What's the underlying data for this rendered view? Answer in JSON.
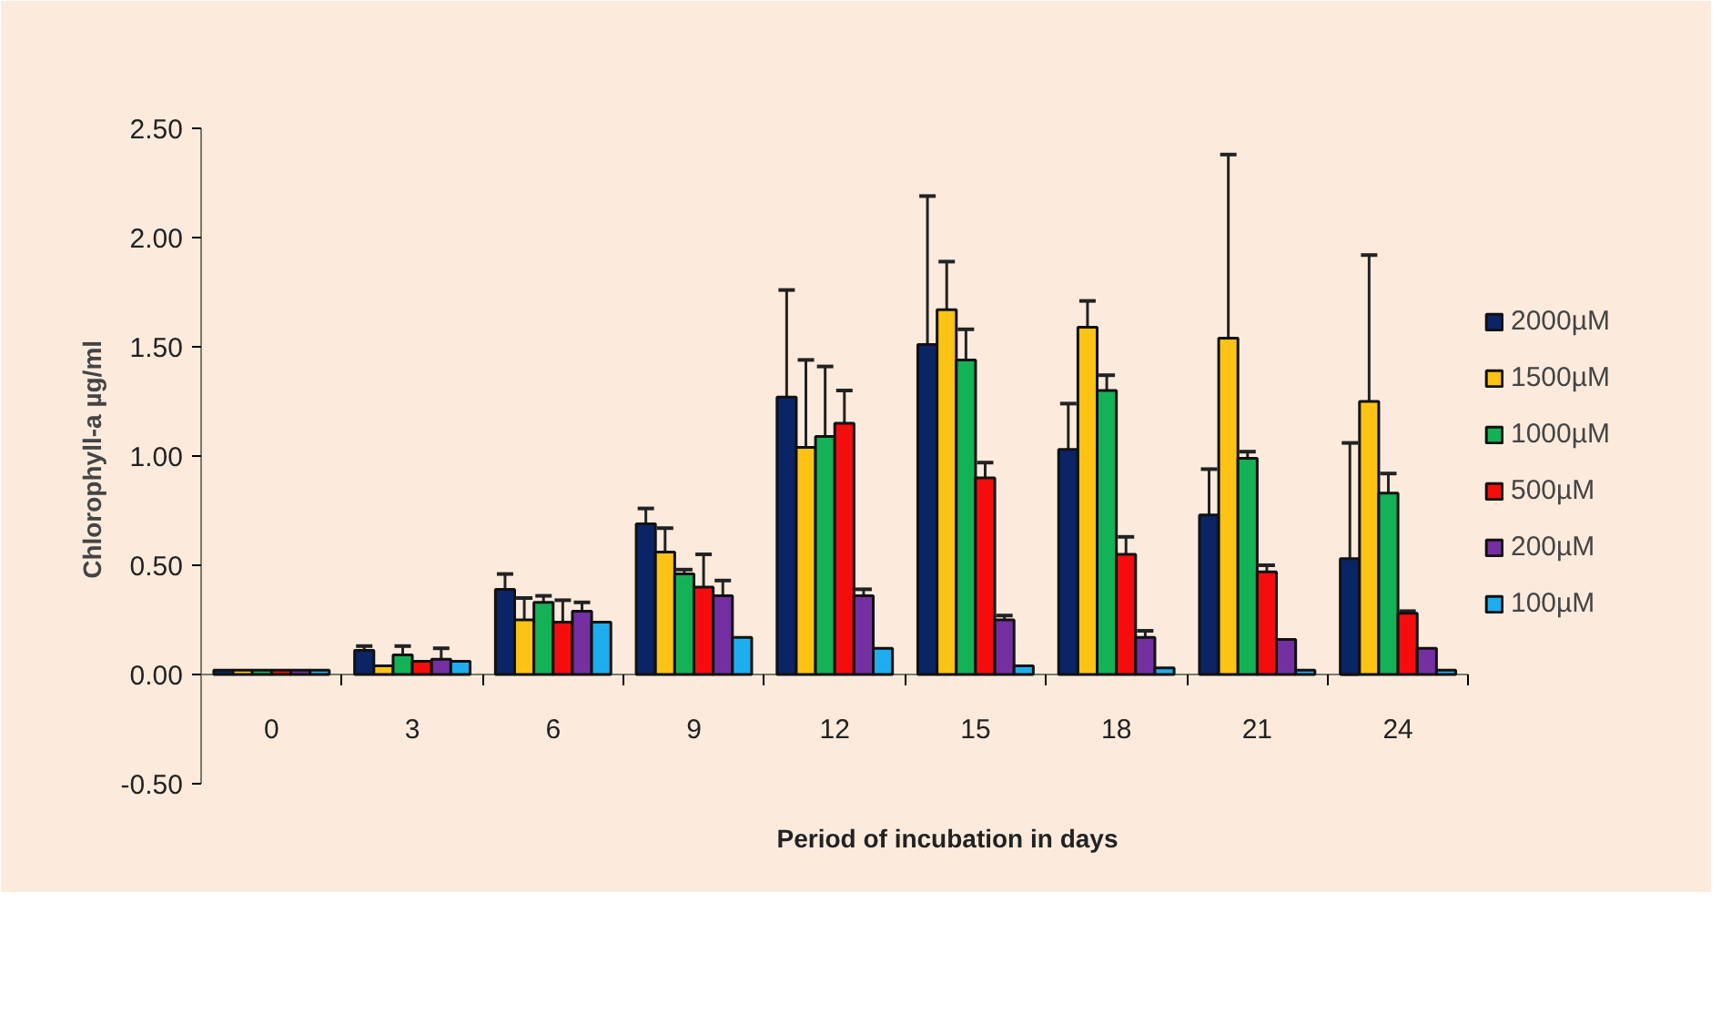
{
  "chart_data": {
    "type": "bar",
    "xlabel": "Period of incubation in days",
    "ylabel": "Chlorophyll-a  µg/ml",
    "categories": [
      "0",
      "3",
      "6",
      "9",
      "12",
      "15",
      "18",
      "21",
      "24"
    ],
    "ylim": [
      -0.5,
      2.5
    ],
    "yticks": [
      {
        "value": -0.5,
        "label": "-0.50"
      },
      {
        "value": 0,
        "label": "0.00"
      },
      {
        "value": 0.5,
        "label": "0.50"
      },
      {
        "value": 1,
        "label": "1.00"
      },
      {
        "value": 1.5,
        "label": "1.50"
      },
      {
        "value": 2,
        "label": "2.00"
      },
      {
        "value": 2.5,
        "label": "2.50"
      }
    ],
    "grid": false,
    "legend": "right",
    "series": [
      {
        "name": "2000µM",
        "color": "#0a2466",
        "values": [
          0.02,
          0.11,
          0.39,
          0.69,
          1.27,
          1.51,
          1.03,
          0.73,
          0.53
        ],
        "errors": [
          null,
          0.02,
          0.07,
          0.07,
          0.49,
          0.68,
          0.21,
          0.21,
          0.53
        ]
      },
      {
        "name": "1500µM",
        "color": "#fcc314",
        "values": [
          0.02,
          0.04,
          0.25,
          0.56,
          1.04,
          1.67,
          1.59,
          1.54,
          1.25
        ],
        "errors": [
          null,
          null,
          0.1,
          0.11,
          0.4,
          0.22,
          0.12,
          0.84,
          0.67
        ]
      },
      {
        "name": "1000µM",
        "color": "#13b257",
        "values": [
          0.02,
          0.09,
          0.33,
          0.46,
          1.09,
          1.44,
          1.3,
          0.99,
          0.83
        ],
        "errors": [
          null,
          0.04,
          0.03,
          0.02,
          0.32,
          0.14,
          0.07,
          0.03,
          0.09
        ]
      },
      {
        "name": "500µM",
        "color": "#f50d0d",
        "values": [
          0.02,
          0.06,
          0.24,
          0.4,
          1.15,
          0.9,
          0.55,
          0.47,
          0.28
        ],
        "errors": [
          null,
          null,
          0.1,
          0.15,
          0.15,
          0.07,
          0.08,
          0.03,
          0.01
        ]
      },
      {
        "name": "200µM",
        "color": "#7430a0",
        "values": [
          0.02,
          0.07,
          0.29,
          0.36,
          0.36,
          0.25,
          0.17,
          0.16,
          0.12
        ],
        "errors": [
          null,
          0.05,
          0.04,
          0.07,
          0.03,
          0.02,
          0.03,
          null,
          null
        ]
      },
      {
        "name": "100µM",
        "color": "#1eaeef",
        "values": [
          0.02,
          0.06,
          0.24,
          0.17,
          0.12,
          0.04,
          0.03,
          0.02,
          0.02
        ],
        "errors": [
          null,
          null,
          null,
          null,
          null,
          null,
          null,
          null,
          null
        ]
      }
    ]
  }
}
